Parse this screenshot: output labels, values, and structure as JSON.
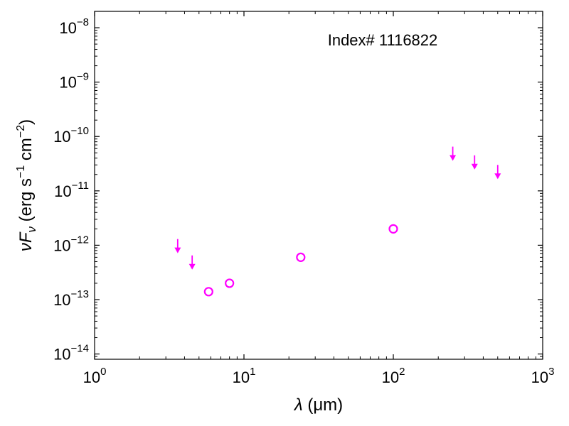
{
  "chart_data": {
    "type": "scatter",
    "title": "",
    "annotation": "Index# 1116822",
    "xlabel": {
      "symbol": "λ",
      "unit": " (μm)"
    },
    "ylabel": {
      "symbol": "νF",
      "sub": "ν",
      "unit_pre": " (erg s",
      "exp1": "−1",
      "unit_mid": " cm",
      "exp2": "−2",
      "unit_post": ")"
    },
    "x_scale": "log",
    "y_scale": "log",
    "xlim": [
      1,
      1000
    ],
    "ylim": [
      8e-15,
      2e-08
    ],
    "x_ticks": [
      {
        "value": 1,
        "base": "10",
        "exp": "0"
      },
      {
        "value": 10,
        "base": "10",
        "exp": "1"
      },
      {
        "value": 100,
        "base": "10",
        "exp": "2"
      },
      {
        "value": 1000,
        "base": "10",
        "exp": "3"
      }
    ],
    "y_ticks": [
      {
        "value": 1e-14,
        "base": "10",
        "exp": "−14"
      },
      {
        "value": 1e-13,
        "base": "10",
        "exp": "−13"
      },
      {
        "value": 1e-12,
        "base": "10",
        "exp": "−12"
      },
      {
        "value": 1e-11,
        "base": "10",
        "exp": "−11"
      },
      {
        "value": 1e-10,
        "base": "10",
        "exp": "−10"
      },
      {
        "value": 1e-09,
        "base": "10",
        "exp": "−9"
      },
      {
        "value": 1e-08,
        "base": "10",
        "exp": "−8"
      }
    ],
    "grid": false,
    "color": "#ff00ff",
    "series": [
      {
        "marker": "open-circle",
        "x": [
          5.8,
          8.0,
          24,
          100
        ],
        "y": [
          1.4e-13,
          2e-13,
          6e-13,
          2e-12
        ]
      },
      {
        "marker": "upper-limit-arrow",
        "x": [
          3.6,
          4.5,
          250,
          350,
          500
        ],
        "y": [
          1.3e-12,
          6.5e-13,
          6.5e-11,
          4.5e-11,
          3e-11
        ]
      }
    ]
  }
}
